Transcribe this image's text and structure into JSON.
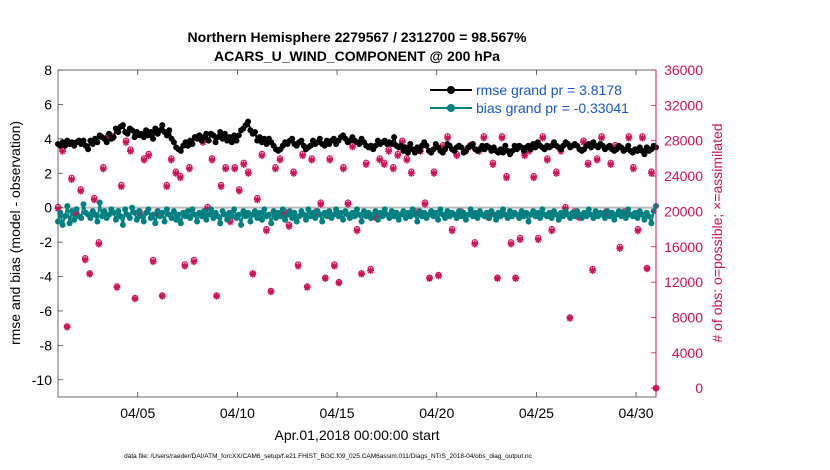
{
  "chart_data": {
    "type": "line",
    "title_line1": "Northern Hemisphere 2279567 / 2312700 = 98.567%",
    "title_line2": "ACARS_U_WIND_COMPONENT @ 200 hPa",
    "xlabel": "Apr.01,2018 00:00:00 start",
    "ylabel_left": "rmse and bias (model - observation)",
    "ylabel_right": "# of obs: o=possible; ×=assimilated",
    "footer": "data file: /Users/raeder/DAI/ATM_forcXX/CAM6_setup/f.e21.FHIST_BGC.f09_025.CAM6assim.011/Diags_NTrS_2018-04/obs_diag_output.nc",
    "xlim": [
      1.0,
      31.0
    ],
    "x_ticks": [
      5,
      10,
      15,
      20,
      25,
      30
    ],
    "x_tick_labels": [
      "04/05",
      "04/10",
      "04/15",
      "04/20",
      "04/25",
      "04/30"
    ],
    "ylim_left": [
      -11,
      8
    ],
    "y_ticks_left": [
      8,
      6,
      4,
      2,
      0,
      -2,
      -4,
      -6,
      -8,
      -10
    ],
    "y_tick_labels_left": [
      "8",
      "6",
      "4",
      "2",
      "0",
      "-2",
      "-4",
      "-6",
      "-8",
      "-10"
    ],
    "ylim_right": [
      -1000,
      36000
    ],
    "y_ticks_right": [
      36000,
      32000,
      28000,
      24000,
      20000,
      16000,
      12000,
      8000,
      4000,
      0
    ],
    "y_tick_labels_right": [
      "36000",
      "32000",
      "28000",
      "24000",
      "20000",
      "16000",
      "12000",
      "8000",
      "4000",
      "0"
    ],
    "zero_line": 0,
    "legend": {
      "position": "top-right",
      "entries": [
        "rmse grand pr = 3.8178",
        "bias grand pr = -0.33041"
      ]
    },
    "colors": {
      "rmse": "#000000",
      "bias": "#008080",
      "obs": "#d0125a",
      "zero_line": "#bbbbbb",
      "right_axis": "#d0125a"
    },
    "series": [
      {
        "name": "rmse",
        "values": [
          3.7,
          3.6,
          3.8,
          3.6,
          3.9,
          3.7,
          3.8,
          3.6,
          3.8,
          3.9,
          3.7,
          3.9,
          3.6,
          3.4,
          3.9,
          3.7,
          4.0,
          3.8,
          4.2,
          4.1,
          4.0,
          3.8,
          4.3,
          4.0,
          4.1,
          4.6,
          4.4,
          4.7,
          4.8,
          4.4,
          4.3,
          4.6,
          4.5,
          4.1,
          4.4,
          4.2,
          4.3,
          4.1,
          4.5,
          4.2,
          4.4,
          4.0,
          4.6,
          4.3,
          4.5,
          4.8,
          4.4,
          4.2,
          4.5,
          4.0,
          3.8,
          3.5,
          3.4,
          3.3,
          3.6,
          3.8,
          3.6,
          3.9,
          3.7,
          4.1,
          4.0,
          4.2,
          3.9,
          4.1,
          4.3,
          3.9,
          4.3,
          4.2,
          3.8,
          4.1,
          4.4,
          4.0,
          4.3,
          3.9,
          4.1,
          3.8,
          4.2,
          3.9,
          4.2,
          4.5,
          4.6,
          4.8,
          5.0,
          4.5,
          4.3,
          4.4,
          3.9,
          4.1,
          3.8,
          4.0,
          3.7,
          4.0,
          3.8,
          3.6,
          3.4,
          3.3,
          3.4,
          3.6,
          3.8,
          3.7,
          3.9,
          4.0,
          3.7,
          3.6,
          3.8,
          3.9,
          3.6,
          3.4,
          3.5,
          3.6,
          3.9,
          3.7,
          3.8,
          4.0,
          3.7,
          3.6,
          3.9,
          3.7,
          3.9,
          4.0,
          3.7,
          3.9,
          4.1,
          4.2,
          4.0,
          3.8,
          3.9,
          4.1,
          3.9,
          3.8,
          3.7,
          4.0,
          3.8,
          3.6,
          3.5,
          3.6,
          3.4,
          3.6,
          3.9,
          3.7,
          3.8,
          3.9,
          3.7,
          3.8,
          3.7,
          4.1,
          3.6,
          3.5,
          3.6,
          3.3,
          3.5,
          3.2,
          3.7,
          3.4,
          3.2,
          3.5,
          3.3,
          3.6,
          3.8,
          3.6,
          3.3,
          3.2,
          3.4,
          3.7,
          3.5,
          3.3,
          3.2,
          3.4,
          3.7,
          3.6,
          3.4,
          3.3,
          3.5,
          3.6,
          3.5,
          3.2,
          3.3,
          3.5,
          3.6,
          3.7,
          3.4,
          3.3,
          3.4,
          3.6,
          3.4,
          3.6,
          3.5,
          3.3,
          3.5,
          3.3,
          3.2,
          3.4,
          3.2,
          3.6,
          3.3,
          3.1,
          3.3,
          3.6,
          3.4,
          3.6,
          3.5,
          3.3,
          3.5,
          3.6,
          3.4,
          3.7,
          3.5,
          3.8,
          3.6,
          3.5,
          3.4,
          3.6,
          3.5,
          3.6,
          3.8,
          3.6,
          3.5,
          3.4,
          3.6,
          3.8,
          3.7,
          3.5,
          3.6,
          3.7,
          3.6,
          3.4,
          3.3,
          3.4,
          3.6,
          3.7,
          3.5,
          3.8,
          3.6,
          3.5,
          3.7,
          3.6,
          3.4,
          3.5,
          3.6,
          3.4,
          3.3,
          3.4,
          3.6,
          3.5,
          3.3,
          3.4,
          3.6,
          3.3,
          3.2,
          3.4,
          3.3,
          3.5,
          3.3,
          3.1,
          3.5,
          3.3,
          3.4,
          3.6,
          3.5
        ]
      },
      {
        "name": "bias",
        "values": [
          -0.8,
          -0.3,
          -1.0,
          -0.5,
          0.1,
          -0.9,
          -0.2,
          -0.7,
          -0.1,
          -0.5,
          -0.6,
          0.2,
          -0.3,
          -0.4,
          -0.6,
          -0.2,
          -0.4,
          -0.8,
          0.3,
          -0.5,
          -0.2,
          -0.6,
          -0.4,
          -0.1,
          -0.3,
          -0.7,
          -0.2,
          -0.5,
          -1.0,
          -0.1,
          -0.4,
          -0.6,
          0.0,
          -0.3,
          -0.7,
          -0.2,
          -0.5,
          -0.8,
          -0.3,
          -0.1,
          -0.6,
          -0.4,
          -0.9,
          -0.2,
          -0.5,
          -0.3,
          -0.8,
          -0.1,
          -0.4,
          -0.6,
          -0.2,
          -0.7,
          -0.4,
          -0.9,
          -0.3,
          -0.5,
          -0.2,
          -0.6,
          -0.1,
          -0.4,
          -0.8,
          -0.3,
          -0.5,
          -0.2,
          -0.7,
          -0.4,
          -0.1,
          -0.6,
          -0.3,
          -0.5,
          -0.9,
          -0.2,
          -0.4,
          -0.7,
          -0.3,
          -0.5,
          -0.1,
          -0.6,
          -0.4,
          -1.0,
          -0.2,
          -0.5,
          -0.3,
          -0.8,
          -0.4,
          -0.2,
          -0.6,
          -0.3,
          -0.7,
          -0.1,
          -0.5,
          -0.4,
          -0.9,
          -0.2,
          -0.6,
          -0.3,
          -0.5,
          -0.1,
          -0.7,
          -0.4,
          -0.2,
          -0.6,
          -0.3,
          -0.8,
          -0.5,
          -0.2,
          -0.4,
          -0.7,
          -0.1,
          -0.5,
          -0.3,
          -0.6,
          -0.2,
          -0.4,
          -0.8,
          -0.3,
          -0.5,
          -0.2,
          -0.6,
          -0.4,
          -0.1,
          -0.5,
          -0.3,
          -0.7,
          -0.2,
          -0.4,
          -0.6,
          -0.3,
          -0.5,
          -0.1,
          -0.4,
          -0.8,
          -0.2,
          -0.5,
          -0.3,
          -0.6,
          -0.4,
          -0.2,
          -0.7,
          -0.3,
          -0.5,
          -0.1,
          -0.4,
          -0.6,
          -0.2,
          -0.5,
          -0.3,
          -0.7,
          -0.4,
          -0.2,
          -0.6,
          -0.3,
          -0.5,
          -0.1,
          -0.4,
          -0.8,
          -0.2,
          -0.5,
          -0.3,
          -0.6,
          -0.4,
          -0.2,
          -0.5,
          -0.3,
          -0.7,
          -0.1,
          -0.4,
          -0.6,
          -0.2,
          -0.5,
          -0.3,
          -0.4,
          -0.6,
          -0.2,
          -0.5,
          -0.3,
          -0.7,
          -0.4,
          -0.1,
          -0.5,
          -0.3,
          -0.6,
          -0.2,
          -0.4,
          -0.5,
          -0.3,
          -0.6,
          -0.2,
          -0.4,
          -0.7,
          -0.3,
          -0.5,
          -0.1,
          -0.4,
          -0.6,
          -0.2,
          -0.5,
          -0.3,
          -0.4,
          -0.6,
          -0.2,
          -0.5,
          -0.3,
          -0.8,
          -0.4,
          -0.2,
          -0.5,
          -0.3,
          -0.6,
          -0.1,
          -0.4,
          -0.5,
          -0.3,
          -0.6,
          -0.2,
          -0.4,
          -0.7,
          -0.3,
          -0.5,
          -0.2,
          -0.4,
          -0.6,
          -0.3,
          -0.5,
          -0.2,
          -0.4,
          -0.6,
          -0.3,
          -0.5,
          -0.1,
          -0.4,
          -0.6,
          -0.2,
          -0.5,
          -0.3,
          -0.4,
          -0.6,
          -0.2,
          -0.5,
          -0.3,
          -0.7,
          -0.4,
          -0.2,
          -0.5,
          -0.3,
          -0.6,
          -0.1,
          -0.4,
          -0.5,
          -0.3,
          -0.6,
          -0.2,
          -0.4,
          -0.7,
          -0.3,
          -0.5,
          -0.9,
          -0.2,
          0.1
        ]
      },
      {
        "name": "obs_possible",
        "values": [
          20500,
          22000,
          27000,
          15000,
          7000,
          22500,
          23800,
          21000,
          20000,
          9800,
          22500,
          19000,
          14700,
          14000,
          13000,
          22000,
          21500,
          14800,
          16500,
          17800,
          25000,
          9600,
          28500,
          29000,
          28500,
          15000,
          11500,
          21000,
          23000,
          18000,
          28000,
          29000,
          27000,
          21500,
          10200,
          23500,
          20000,
          10500,
          26000,
          28500,
          26500,
          25500,
          14500,
          22500,
          20000,
          25000,
          10500,
          26000,
          23000,
          13000,
          26000,
          22000,
          24500,
          12800,
          24000,
          21000,
          14000,
          27000,
          25000,
          23500,
          14500,
          11500,
          28500,
          29000,
          28000,
          25000,
          20500,
          10000,
          26000,
          23500,
          10500,
          24500,
          23000,
          14000,
          25000,
          22800,
          19000,
          14000,
          25000,
          23000,
          22500,
          10000,
          25500,
          12000,
          24500,
          20000,
          13000,
          24000,
          21500,
          14500,
          26500,
          25000,
          18000,
          15000,
          11000,
          24000,
          25000,
          9500,
          26000,
          5500,
          20000,
          21000,
          18500,
          9500,
          24500,
          23500,
          14000,
          25500,
          26500,
          19000,
          11500,
          21000,
          26000,
          27500,
          20000,
          13000,
          21000,
          18000,
          12500,
          28000,
          26000,
          24000,
          14000,
          21500,
          12000,
          26500,
          25000,
          12000,
          21000,
          28000,
          27500,
          14000,
          18000,
          19000,
          13000,
          26500,
          25500,
          21000,
          13500,
          20500,
          19500,
          27000,
          26000,
          24000,
          25500,
          24000,
          27000,
          28000,
          25000,
          26000,
          26500,
          25000,
          28000,
          27500,
          26000,
          25500,
          24500,
          21500,
          20000,
          11000,
          27000,
          26000,
          21000,
          19500,
          12500,
          18000,
          24500,
          16000,
          12800,
          28000,
          27500,
          27000,
          28500,
          20000,
          18000,
          12500,
          26500,
          16000,
          20000,
          13000,
          27000,
          26500,
          27500,
          20500,
          16500,
          24500,
          27000,
          25000,
          28500,
          12000,
          19500,
          14500,
          25500,
          17000,
          12500,
          26500,
          28500,
          26000,
          24000,
          28000,
          16500,
          18000,
          12500,
          25000,
          17000,
          21000,
          26500,
          28000,
          27000,
          29000,
          24000,
          12500,
          17000,
          26000,
          28500,
          27500,
          26000,
          21000,
          18000,
          12500,
          24500,
          28000,
          27000,
          25000,
          20500,
          17500,
          8000,
          26500,
          20000,
          14500,
          19500,
          26000,
          28000,
          28500,
          25500,
          18000,
          13500,
          26500,
          26000,
          20000,
          28500,
          26000,
          20000,
          13500,
          25500,
          28000,
          27500,
          23000,
          16000,
          8600,
          20000,
          26000,
          28500,
          27500,
          25000,
          14500,
          18000,
          10000,
          28500,
          24500,
          13600,
          26000,
          24500,
          20000,
          0
        ]
      },
      {
        "name": "obs_assimilated",
        "values": [
          20300,
          21800,
          26800,
          14800,
          6900,
          22300,
          23600,
          20800,
          19800,
          9700,
          22300,
          18800,
          14500,
          13800,
          12900,
          21800,
          21300,
          14600,
          16300,
          17600,
          24800,
          9500,
          28300,
          28800,
          28300,
          14800,
          11400,
          20800,
          22800,
          17800,
          27800,
          28800,
          26800,
          21300,
          10100,
          23300,
          19800,
          10400,
          25800,
          28300,
          26300,
          25300,
          14300,
          22300,
          19800,
          24800,
          10400,
          25800,
          22800,
          12900,
          25800,
          21800,
          24300,
          12700,
          23800,
          20800,
          13800,
          26800,
          24800,
          23300,
          14300,
          11400,
          28300,
          28800,
          27800,
          24800,
          20300,
          9900,
          25800,
          23300,
          10400,
          24300,
          22800,
          13800,
          24800,
          22600,
          18800,
          13800,
          24800,
          22800,
          22300,
          9900,
          25300,
          11900,
          24300,
          19800,
          12900,
          23800,
          21300,
          14300,
          26300,
          24800,
          17800,
          14800,
          10900,
          23800,
          24800,
          9400,
          25800,
          5400,
          19800,
          20800,
          18300,
          9400,
          24300,
          23300,
          13800,
          25300,
          26300,
          18800,
          11400,
          20800,
          25800,
          27300,
          19800,
          12900,
          20800,
          17800,
          12400,
          27800,
          25800,
          23800,
          13800,
          21300,
          11900,
          26300,
          24800,
          11900,
          20800,
          27800,
          27300,
          13800,
          17800,
          18800,
          12900,
          26300,
          25300,
          20800,
          13300,
          20300,
          19300,
          26800,
          25800,
          23800,
          25300,
          23800,
          26800,
          27800,
          24800,
          25800,
          26300,
          24800,
          27800,
          27300,
          25800,
          25300,
          24300,
          21300,
          19800,
          10900,
          26800,
          25800,
          20800,
          19300,
          12400,
          17800,
          24300,
          15800,
          12700,
          27800,
          27300,
          26800,
          28300,
          19800,
          17800,
          12400,
          26300,
          15800,
          19800,
          12900,
          26800,
          26300,
          27300,
          20300,
          16300,
          24300,
          26800,
          24800,
          28300,
          11900,
          19300,
          14300,
          25300,
          16800,
          12400,
          26300,
          28300,
          25800,
          23800,
          27800,
          16300,
          17800,
          12400,
          24800,
          16800,
          20800,
          26300,
          27800,
          26800,
          28800,
          23800,
          12400,
          16800,
          25800,
          28300,
          27300,
          25800,
          20800,
          17800,
          12400,
          24300,
          27800,
          26800,
          24800,
          20300,
          17300,
          7900,
          26300,
          19800,
          14300,
          19300,
          25800,
          27800,
          28300,
          25300,
          17800,
          13300,
          26300,
          25800,
          19800,
          28300,
          25800,
          19800,
          13300,
          25300,
          27800,
          27300,
          22800,
          15800,
          8500,
          19800,
          25800,
          28300,
          27300,
          24800,
          14300,
          17800,
          9900,
          28300,
          24300,
          13500,
          25800,
          24300,
          19800,
          0
        ]
      }
    ]
  }
}
